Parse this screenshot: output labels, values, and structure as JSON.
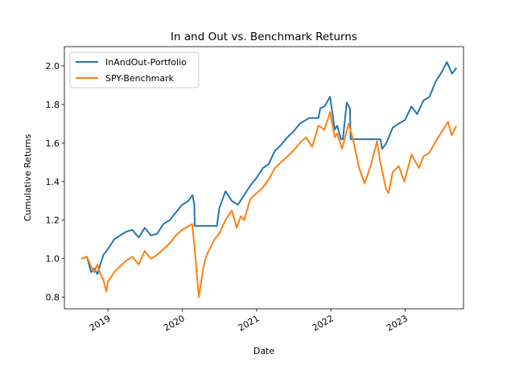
{
  "chart_data": {
    "type": "line",
    "title": "In and Out vs. Benchmark Returns",
    "xlabel": "Date",
    "ylabel": "Cumulative Returns",
    "xlim": [
      "2018-06-01",
      "2023-10-15"
    ],
    "ylim": [
      0.74,
      2.1
    ],
    "yticks": [
      0.8,
      1.0,
      1.2,
      1.4,
      1.6,
      1.8,
      2.0
    ],
    "ytick_labels": [
      "0.8",
      "1.0",
      "1.2",
      "1.4",
      "1.6",
      "1.8",
      "2.0"
    ],
    "xticks": [
      "2019-01-01",
      "2020-01-01",
      "2021-01-01",
      "2022-01-01",
      "2023-01-01"
    ],
    "xtick_labels": [
      "2019",
      "2020",
      "2021",
      "2022",
      "2023"
    ],
    "grid": false,
    "legend_position": "upper-left",
    "series": [
      {
        "name": "InAndOut-Portfolio",
        "color": "#1f77b4",
        "points": [
          [
            "2018-08-24",
            1.0
          ],
          [
            "2018-09-20",
            1.01
          ],
          [
            "2018-10-10",
            0.93
          ],
          [
            "2018-10-25",
            0.95
          ],
          [
            "2018-11-10",
            0.92
          ],
          [
            "2018-11-25",
            0.97
          ],
          [
            "2018-12-10",
            1.02
          ],
          [
            "2019-01-01",
            1.05
          ],
          [
            "2019-02-01",
            1.1
          ],
          [
            "2019-03-01",
            1.12
          ],
          [
            "2019-04-01",
            1.14
          ],
          [
            "2019-05-01",
            1.15
          ],
          [
            "2019-06-01",
            1.11
          ],
          [
            "2019-07-01",
            1.16
          ],
          [
            "2019-08-01",
            1.12
          ],
          [
            "2019-09-01",
            1.13
          ],
          [
            "2019-10-01",
            1.18
          ],
          [
            "2019-11-01",
            1.2
          ],
          [
            "2019-12-01",
            1.24
          ],
          [
            "2020-01-01",
            1.28
          ],
          [
            "2020-02-01",
            1.3
          ],
          [
            "2020-02-21",
            1.33
          ],
          [
            "2020-03-01",
            1.28
          ],
          [
            "2020-03-03",
            1.17
          ],
          [
            "2020-06-01",
            1.17
          ],
          [
            "2020-06-20",
            1.17
          ],
          [
            "2020-07-01",
            1.26
          ],
          [
            "2020-08-01",
            1.35
          ],
          [
            "2020-09-01",
            1.3
          ],
          [
            "2020-10-01",
            1.28
          ],
          [
            "2020-11-01",
            1.33
          ],
          [
            "2020-12-01",
            1.38
          ],
          [
            "2021-01-01",
            1.42
          ],
          [
            "2021-02-01",
            1.47
          ],
          [
            "2021-03-01",
            1.49
          ],
          [
            "2021-04-01",
            1.56
          ],
          [
            "2021-05-01",
            1.59
          ],
          [
            "2021-06-01",
            1.63
          ],
          [
            "2021-07-01",
            1.66
          ],
          [
            "2021-08-01",
            1.7
          ],
          [
            "2021-09-01",
            1.72
          ],
          [
            "2021-09-15",
            1.73
          ],
          [
            "2021-11-01",
            1.73
          ],
          [
            "2021-11-10",
            1.78
          ],
          [
            "2021-12-01",
            1.79
          ],
          [
            "2021-12-28",
            1.84
          ],
          [
            "2022-01-20",
            1.67
          ],
          [
            "2022-02-01",
            1.69
          ],
          [
            "2022-02-20",
            1.62
          ],
          [
            "2022-03-01",
            1.62
          ],
          [
            "2022-03-20",
            1.81
          ],
          [
            "2022-04-05",
            1.78
          ],
          [
            "2022-04-08",
            1.62
          ],
          [
            "2022-09-01",
            1.62
          ],
          [
            "2022-09-10",
            1.57
          ],
          [
            "2022-10-01",
            1.6
          ],
          [
            "2022-11-01",
            1.68
          ],
          [
            "2022-12-01",
            1.7
          ],
          [
            "2023-01-01",
            1.72
          ],
          [
            "2023-02-01",
            1.79
          ],
          [
            "2023-03-01",
            1.75
          ],
          [
            "2023-04-01",
            1.82
          ],
          [
            "2023-05-01",
            1.84
          ],
          [
            "2023-06-01",
            1.92
          ],
          [
            "2023-07-01",
            1.97
          ],
          [
            "2023-07-25",
            2.02
          ],
          [
            "2023-08-20",
            1.96
          ],
          [
            "2023-09-10",
            1.99
          ]
        ]
      },
      {
        "name": "SPY-Benchmark",
        "color": "#ff7f0e",
        "points": [
          [
            "2018-08-24",
            1.0
          ],
          [
            "2018-09-20",
            1.01
          ],
          [
            "2018-10-10",
            0.96
          ],
          [
            "2018-10-25",
            0.93
          ],
          [
            "2018-11-10",
            0.97
          ],
          [
            "2018-11-25",
            0.92
          ],
          [
            "2018-12-10",
            0.89
          ],
          [
            "2018-12-24",
            0.83
          ],
          [
            "2019-01-01",
            0.88
          ],
          [
            "2019-02-01",
            0.93
          ],
          [
            "2019-03-01",
            0.96
          ],
          [
            "2019-04-01",
            0.99
          ],
          [
            "2019-05-01",
            1.01
          ],
          [
            "2019-06-01",
            0.97
          ],
          [
            "2019-07-01",
            1.04
          ],
          [
            "2019-08-01",
            1.0
          ],
          [
            "2019-09-01",
            1.02
          ],
          [
            "2019-10-01",
            1.05
          ],
          [
            "2019-11-01",
            1.08
          ],
          [
            "2019-12-01",
            1.12
          ],
          [
            "2020-01-01",
            1.15
          ],
          [
            "2020-02-19",
            1.18
          ],
          [
            "2020-03-01",
            1.07
          ],
          [
            "2020-03-23",
            0.8
          ],
          [
            "2020-04-15",
            0.96
          ],
          [
            "2020-05-01",
            1.02
          ],
          [
            "2020-06-08",
            1.1
          ],
          [
            "2020-07-01",
            1.13
          ],
          [
            "2020-08-01",
            1.2
          ],
          [
            "2020-09-01",
            1.25
          ],
          [
            "2020-09-25",
            1.16
          ],
          [
            "2020-10-15",
            1.22
          ],
          [
            "2020-11-01",
            1.2
          ],
          [
            "2020-12-01",
            1.31
          ],
          [
            "2021-01-01",
            1.34
          ],
          [
            "2021-02-01",
            1.37
          ],
          [
            "2021-03-01",
            1.41
          ],
          [
            "2021-04-01",
            1.47
          ],
          [
            "2021-05-01",
            1.5
          ],
          [
            "2021-06-01",
            1.53
          ],
          [
            "2021-07-01",
            1.56
          ],
          [
            "2021-08-01",
            1.6
          ],
          [
            "2021-09-01",
            1.63
          ],
          [
            "2021-10-01",
            1.58
          ],
          [
            "2021-11-01",
            1.69
          ],
          [
            "2021-12-01",
            1.67
          ],
          [
            "2021-12-28",
            1.76
          ],
          [
            "2022-01-20",
            1.63
          ],
          [
            "2022-02-01",
            1.65
          ],
          [
            "2022-02-25",
            1.57
          ],
          [
            "2022-03-29",
            1.7
          ],
          [
            "2022-04-20",
            1.62
          ],
          [
            "2022-05-20",
            1.47
          ],
          [
            "2022-06-16",
            1.39
          ],
          [
            "2022-07-15",
            1.48
          ],
          [
            "2022-08-16",
            1.61
          ],
          [
            "2022-09-01",
            1.5
          ],
          [
            "2022-09-30",
            1.36
          ],
          [
            "2022-10-12",
            1.34
          ],
          [
            "2022-11-01",
            1.45
          ],
          [
            "2022-12-01",
            1.48
          ],
          [
            "2022-12-28",
            1.4
          ],
          [
            "2023-01-15",
            1.47
          ],
          [
            "2023-02-02",
            1.54
          ],
          [
            "2023-03-10",
            1.47
          ],
          [
            "2023-04-01",
            1.53
          ],
          [
            "2023-05-01",
            1.55
          ],
          [
            "2023-06-01",
            1.61
          ],
          [
            "2023-07-01",
            1.66
          ],
          [
            "2023-07-31",
            1.71
          ],
          [
            "2023-08-18",
            1.64
          ],
          [
            "2023-09-10",
            1.69
          ]
        ]
      }
    ]
  }
}
